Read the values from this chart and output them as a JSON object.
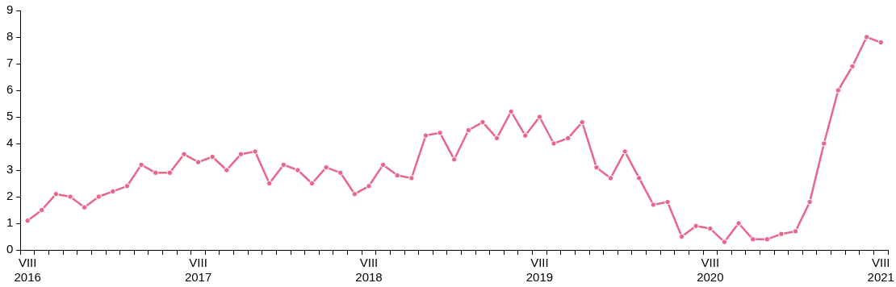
{
  "chart_data": {
    "type": "line",
    "categories": [
      "VIII\n2016",
      null,
      null,
      null,
      null,
      null,
      null,
      null,
      null,
      null,
      null,
      null,
      "VIII\n2017",
      null,
      null,
      null,
      null,
      null,
      null,
      null,
      null,
      null,
      null,
      null,
      "VIII\n2018",
      null,
      null,
      null,
      null,
      null,
      null,
      null,
      null,
      null,
      null,
      null,
      "VIII\n2019",
      null,
      null,
      null,
      null,
      null,
      null,
      null,
      null,
      null,
      null,
      null,
      "VIII\n2020",
      null,
      null,
      null,
      null,
      null,
      null,
      null,
      null,
      null,
      null,
      null,
      "VIII\n2021"
    ],
    "values": [
      1.1,
      1.5,
      2.1,
      2.0,
      1.6,
      2.0,
      2.2,
      2.4,
      3.2,
      2.9,
      2.9,
      3.6,
      3.3,
      3.5,
      3.0,
      3.6,
      3.7,
      2.5,
      3.2,
      3.0,
      2.5,
      3.1,
      2.9,
      2.1,
      2.4,
      3.2,
      2.8,
      2.7,
      4.3,
      4.4,
      3.4,
      4.5,
      4.8,
      4.2,
      5.2,
      4.3,
      5.0,
      4.0,
      4.2,
      4.8,
      3.1,
      2.7,
      3.7,
      2.7,
      1.7,
      1.8,
      0.5,
      0.9,
      0.8,
      0.3,
      1.0,
      0.4,
      0.4,
      0.6,
      0.7,
      1.8,
      4.0,
      6.0,
      6.9,
      8.0,
      7.8
    ],
    "color": "#e8668a",
    "marker": "circle",
    "line_style": "solid",
    "ylim": [
      0,
      9
    ],
    "yticks": [
      0,
      1,
      2,
      3,
      4,
      5,
      6,
      7,
      8,
      9
    ]
  }
}
